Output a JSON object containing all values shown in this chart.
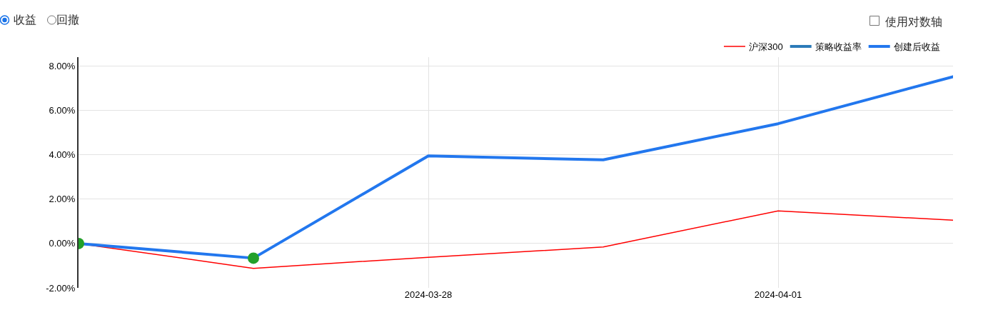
{
  "chart_data": {
    "type": "line",
    "categories": [
      null,
      null,
      "2024-03-28",
      null,
      "2024-04-01",
      null
    ],
    "series": [
      {
        "name": "沪深300",
        "color": "#ff0000",
        "values": [
          0,
          -1.12,
          -0.62,
          -0.16,
          1.47,
          1.05
        ]
      },
      {
        "name": "策略收益率",
        "color": "#2a7ab8",
        "values": [
          null,
          null,
          null,
          null,
          null,
          null
        ]
      },
      {
        "name": "创建后收益",
        "color": "#2277ee",
        "values": [
          0,
          -0.66,
          3.95,
          3.77,
          5.4,
          7.52
        ]
      },
      {
        "type": "scatter",
        "color": "#22a02a",
        "marker": "circle",
        "values": [
          0,
          -0.66,
          null,
          null,
          null,
          null
        ]
      }
    ],
    "ylim": [
      -2,
      8.4
    ],
    "yticks": [
      {
        "value": -2,
        "label": "-2.00%"
      },
      {
        "value": 0,
        "label": "0.00%"
      },
      {
        "value": 2,
        "label": "2.00%"
      },
      {
        "value": 4,
        "label": "4.00%"
      },
      {
        "value": 6,
        "label": "6.00%"
      },
      {
        "value": 8,
        "label": "8.00%"
      }
    ],
    "grid": true,
    "legend": "top right",
    "annotations": [
      "收益",
      "回撤",
      "使用对数轴"
    ]
  }
}
